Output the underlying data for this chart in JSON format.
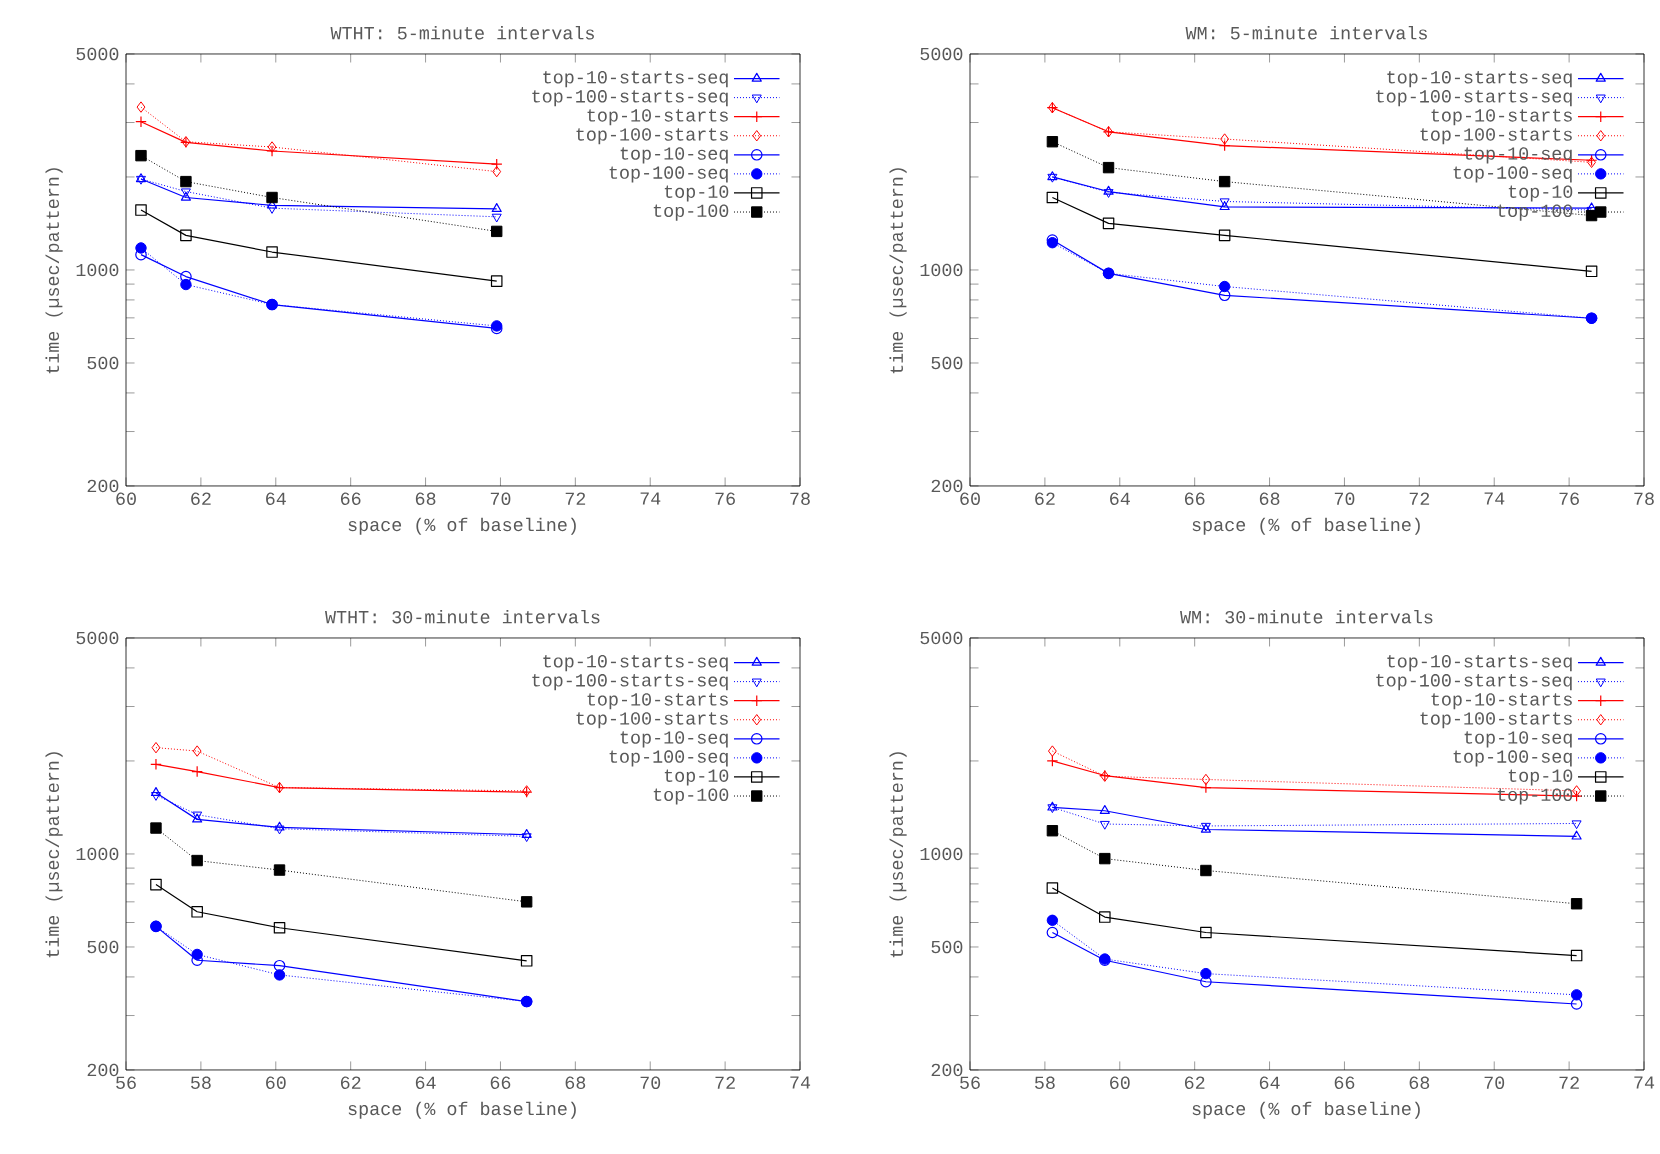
{
  "chart_data": [
    {
      "type": "line",
      "title": "WTHT: 5-minute intervals",
      "xlabel": "space (% of baseline)",
      "ylabel": "time (µsec/pattern)",
      "log": "y",
      "legend": "top right",
      "xlim": [
        60,
        78
      ],
      "xticks": [
        60,
        62,
        64,
        66,
        68,
        70,
        72,
        74,
        76,
        78
      ],
      "ylim": [
        200,
        5000
      ],
      "yticks": [
        200,
        {
          "value": 300,
          "label": null
        },
        {
          "value": 400,
          "label": null
        },
        500,
        {
          "value": 600,
          "label": null
        },
        {
          "value": 700,
          "label": null
        },
        {
          "value": 800,
          "label": null
        },
        {
          "value": 900,
          "label": null
        },
        1000,
        {
          "value": 2000,
          "label": null
        },
        {
          "value": 3000,
          "label": null
        },
        {
          "value": 4000,
          "label": null
        },
        5000
      ],
      "x": [
        60.4,
        61.6,
        63.9,
        69.9
      ],
      "series": [
        {
          "name": "top-10-starts-seq",
          "color": "#0000ff",
          "marker": "triangle",
          "line_style": "solid",
          "values": [
            1970,
            1716,
            1618,
            1577
          ]
        },
        {
          "name": "top-100-starts-seq",
          "color": "#0000ff",
          "marker": "triangle-down",
          "line_style": "dotted",
          "values": [
            1970,
            1794,
            1585,
            1486
          ]
        },
        {
          "name": "top-10-starts",
          "color": "#ff0000",
          "marker": "cross",
          "line_style": "solid",
          "values": [
            3019,
            2588,
            2427,
            2199
          ]
        },
        {
          "name": "top-100-starts",
          "color": "#ff0000",
          "marker": "diamond",
          "line_style": "dotted",
          "values": [
            3366,
            2600,
            2500,
            2081
          ]
        },
        {
          "name": "top-10-seq",
          "color": "#0000ff",
          "marker": "circle",
          "line_style": "solid",
          "values": [
            1121,
            952,
            773,
            647
          ]
        },
        {
          "name": "top-100-seq",
          "color": "#0000ff",
          "marker": "circle-filled",
          "line_style": "dotted",
          "values": [
            1178,
            897,
            773,
            659
          ]
        },
        {
          "name": "top-10",
          "color": "#000000",
          "marker": "square",
          "line_style": "solid",
          "values": [
            1563,
            1294,
            1143,
            920
          ]
        },
        {
          "name": "top-100",
          "color": "#000000",
          "marker": "square-filled",
          "line_style": "dotted",
          "values": [
            2344,
            1932,
            1716,
            1333
          ]
        }
      ]
    },
    {
      "type": "line",
      "title": "WM: 5-minute intervals",
      "xlabel": "space (% of baseline)",
      "ylabel": "time (µsec/pattern)",
      "log": "y",
      "legend": "top right",
      "xlim": [
        60,
        78
      ],
      "xticks": [
        60,
        62,
        64,
        66,
        68,
        70,
        72,
        74,
        76,
        78
      ],
      "ylim": [
        200,
        5000
      ],
      "yticks": [
        200,
        {
          "value": 300,
          "label": null
        },
        {
          "value": 400,
          "label": null
        },
        500,
        {
          "value": 600,
          "label": null
        },
        {
          "value": 700,
          "label": null
        },
        {
          "value": 800,
          "label": null
        },
        {
          "value": 900,
          "label": null
        },
        1000,
        {
          "value": 2000,
          "label": null
        },
        {
          "value": 3000,
          "label": null
        },
        {
          "value": 4000,
          "label": null
        },
        5000
      ],
      "x": [
        62.2,
        63.7,
        66.8,
        76.6
      ],
      "series": [
        {
          "name": "top-10-starts-seq",
          "color": "#0000ff",
          "marker": "triangle",
          "line_style": "solid",
          "values": [
            2000,
            1794,
            1600,
            1585
          ]
        },
        {
          "name": "top-100-starts-seq",
          "color": "#0000ff",
          "marker": "triangle-down",
          "line_style": "dotted",
          "values": [
            2000,
            1785,
            1666,
            1563
          ]
        },
        {
          "name": "top-10-starts",
          "color": "#ff0000",
          "marker": "cross",
          "line_style": "solid",
          "values": [
            3350,
            2800,
            2525,
            2265
          ]
        },
        {
          "name": "top-100-starts",
          "color": "#ff0000",
          "marker": "diamond",
          "line_style": "dotted",
          "values": [
            3350,
            2800,
            2653,
            2230
          ]
        },
        {
          "name": "top-10-seq",
          "color": "#0000ff",
          "marker": "circle",
          "line_style": "solid",
          "values": [
            1250,
            975,
            828,
            698
          ]
        },
        {
          "name": "top-100-seq",
          "color": "#0000ff",
          "marker": "circle-filled",
          "line_style": "dotted",
          "values": [
            1225,
            975,
            884,
            698
          ]
        },
        {
          "name": "top-10",
          "color": "#000000",
          "marker": "square",
          "line_style": "solid",
          "values": [
            1716,
            1415,
            1294,
            990
          ]
        },
        {
          "name": "top-100",
          "color": "#000000",
          "marker": "square-filled",
          "line_style": "dotted",
          "values": [
            2600,
            2144,
            1932,
            1500
          ]
        }
      ]
    },
    {
      "type": "line",
      "title": "WTHT: 30-minute intervals",
      "xlabel": "space (% of baseline)",
      "ylabel": "time (µsec/pattern)",
      "log": "y",
      "legend": "top right",
      "xlim": [
        56,
        74
      ],
      "xticks": [
        56,
        58,
        60,
        62,
        64,
        66,
        68,
        70,
        72,
        74
      ],
      "ylim": [
        200,
        5000
      ],
      "yticks": [
        200,
        {
          "value": 300,
          "label": null
        },
        {
          "value": 400,
          "label": null
        },
        500,
        {
          "value": 600,
          "label": null
        },
        {
          "value": 700,
          "label": null
        },
        {
          "value": 800,
          "label": null
        },
        {
          "value": 900,
          "label": null
        },
        1000,
        {
          "value": 2000,
          "label": null
        },
        {
          "value": 3000,
          "label": null
        },
        {
          "value": 4000,
          "label": null
        },
        5000
      ],
      "x": [
        56.8,
        57.9,
        60.1,
        66.7
      ],
      "series": [
        {
          "name": "top-10-starts-seq",
          "color": "#0000ff",
          "marker": "triangle",
          "line_style": "solid",
          "values": [
            1577,
            1294,
            1219,
            1154
          ]
        },
        {
          "name": "top-100-starts-seq",
          "color": "#0000ff",
          "marker": "triangle-down",
          "line_style": "dotted",
          "values": [
            1550,
            1340,
            1207,
            1140
          ]
        },
        {
          "name": "top-10-starts",
          "color": "#ff0000",
          "marker": "cross",
          "line_style": "solid",
          "values": [
            1951,
            1848,
            1640,
            1585
          ]
        },
        {
          "name": "top-100-starts",
          "color": "#ff0000",
          "marker": "diamond",
          "line_style": "dotted",
          "values": [
            2208,
            2153,
            1640,
            1600
          ]
        },
        {
          "name": "top-10-seq",
          "color": "#0000ff",
          "marker": "circle",
          "line_style": "solid",
          "values": [
            583,
            453,
            435,
            333
          ]
        },
        {
          "name": "top-100-seq",
          "color": "#0000ff",
          "marker": "circle-filled",
          "line_style": "dotted",
          "values": [
            583,
            473,
            406,
            333
          ]
        },
        {
          "name": "top-10",
          "color": "#000000",
          "marker": "square",
          "line_style": "solid",
          "values": [
            796,
            650,
            577,
            451
          ]
        },
        {
          "name": "top-100",
          "color": "#000000",
          "marker": "square-filled",
          "line_style": "dotted",
          "values": [
            1213,
            952,
            887,
            700
          ]
        }
      ]
    },
    {
      "type": "line",
      "title": "WM: 30-minute intervals",
      "xlabel": "space (% of baseline)",
      "ylabel": "time (µsec/pattern)",
      "log": "y",
      "legend": "top right",
      "xlim": [
        56,
        74
      ],
      "xticks": [
        56,
        58,
        60,
        62,
        64,
        66,
        68,
        70,
        72,
        74
      ],
      "ylim": [
        200,
        5000
      ],
      "yticks": [
        200,
        {
          "value": 300,
          "label": null
        },
        {
          "value": 400,
          "label": null
        },
        500,
        {
          "value": 600,
          "label": null
        },
        {
          "value": 700,
          "label": null
        },
        {
          "value": 800,
          "label": null
        },
        {
          "value": 900,
          "label": null
        },
        1000,
        {
          "value": 2000,
          "label": null
        },
        {
          "value": 3000,
          "label": null
        },
        {
          "value": 4000,
          "label": null
        },
        5000
      ],
      "x": [
        58.2,
        59.6,
        62.3,
        72.2
      ],
      "series": [
        {
          "name": "top-10-starts-seq",
          "color": "#0000ff",
          "marker": "triangle",
          "line_style": "solid",
          "values": [
            1415,
            1380,
            1200,
            1140
          ]
        },
        {
          "name": "top-100-starts-seq",
          "color": "#0000ff",
          "marker": "triangle-down",
          "line_style": "dotted",
          "values": [
            1415,
            1250,
            1232,
            1255
          ]
        },
        {
          "name": "top-10-starts",
          "color": "#ff0000",
          "marker": "cross",
          "line_style": "solid",
          "values": [
            2000,
            1794,
            1640,
            1539
          ]
        },
        {
          "name": "top-100-starts",
          "color": "#ff0000",
          "marker": "diamond",
          "line_style": "dotted",
          "values": [
            2153,
            1785,
            1742,
            1600
          ]
        },
        {
          "name": "top-10-seq",
          "color": "#0000ff",
          "marker": "circle",
          "line_style": "solid",
          "values": [
            557,
            453,
            386,
            327
          ]
        },
        {
          "name": "top-100-seq",
          "color": "#0000ff",
          "marker": "circle-filled",
          "line_style": "dotted",
          "values": [
            610,
            457,
            410,
            350
          ]
        },
        {
          "name": "top-10",
          "color": "#000000",
          "marker": "square",
          "line_style": "solid",
          "values": [
            776,
            625,
            557,
            469
          ]
        },
        {
          "name": "top-100",
          "color": "#000000",
          "marker": "square-filled",
          "line_style": "dotted",
          "values": [
            1189,
            966,
            884,
            690
          ]
        }
      ]
    }
  ]
}
